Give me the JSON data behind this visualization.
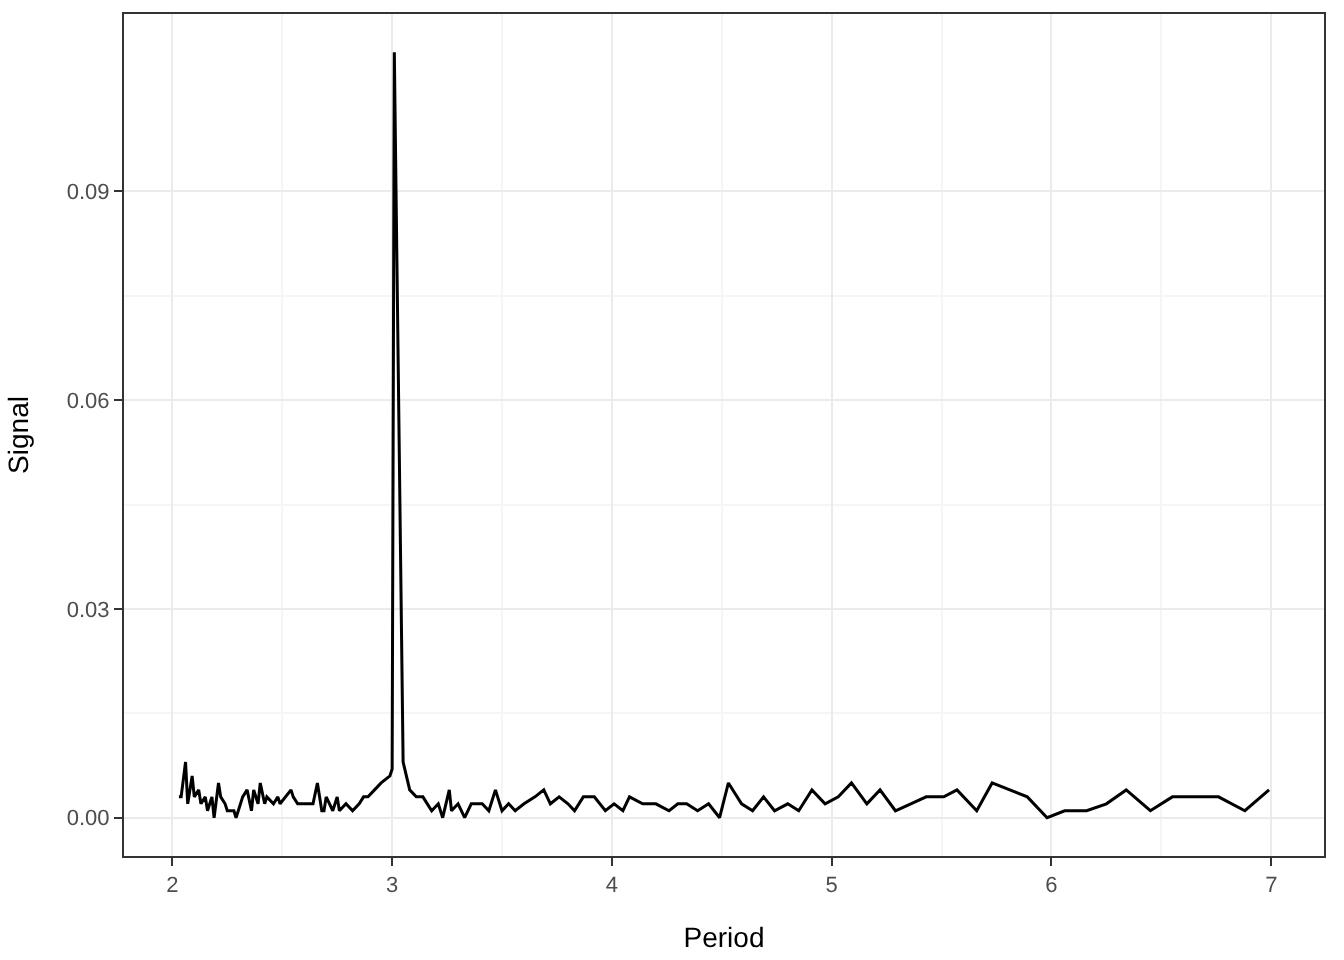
{
  "chart_data": {
    "type": "line",
    "xlabel": "Period",
    "ylabel": "Signal",
    "x": [
      2.03,
      2.04,
      2.06,
      2.07,
      2.09,
      2.1,
      2.12,
      2.13,
      2.15,
      2.16,
      2.18,
      2.19,
      2.21,
      2.22,
      2.24,
      2.25,
      2.28,
      2.29,
      2.32,
      2.34,
      2.36,
      2.37,
      2.39,
      2.4,
      2.42,
      2.43,
      2.46,
      2.48,
      2.49,
      2.54,
      2.55,
      2.57,
      2.58,
      2.62,
      2.64,
      2.66,
      2.68,
      2.69,
      2.7,
      2.73,
      2.75,
      2.76,
      2.79,
      2.82,
      2.85,
      2.87,
      2.89,
      2.92,
      2.95,
      2.99,
      3.0,
      3.01,
      3.05,
      3.08,
      3.11,
      3.14,
      3.18,
      3.21,
      3.23,
      3.26,
      3.27,
      3.3,
      3.33,
      3.36,
      3.41,
      3.44,
      3.47,
      3.5,
      3.53,
      3.56,
      3.6,
      3.65,
      3.69,
      3.72,
      3.76,
      3.8,
      3.83,
      3.87,
      3.92,
      3.97,
      4.01,
      4.05,
      4.08,
      4.14,
      4.2,
      4.26,
      4.3,
      4.34,
      4.39,
      4.44,
      4.49,
      4.53,
      4.59,
      4.64,
      4.69,
      4.74,
      4.8,
      4.85,
      4.91,
      4.97,
      5.03,
      5.09,
      5.16,
      5.22,
      5.29,
      5.36,
      5.43,
      5.51,
      5.57,
      5.66,
      5.73,
      5.89,
      5.98,
      6.06,
      6.16,
      6.25,
      6.34,
      6.45,
      6.55,
      6.66,
      6.76,
      6.88,
      6.99
    ],
    "values": [
      0.003,
      0.003,
      0.008,
      0.002,
      0.006,
      0.003,
      0.004,
      0.002,
      0.003,
      0.001,
      0.003,
      0.0,
      0.005,
      0.003,
      0.002,
      0.001,
      0.001,
      0.0,
      0.003,
      0.004,
      0.001,
      0.004,
      0.002,
      0.005,
      0.002,
      0.003,
      0.002,
      0.003,
      0.002,
      0.004,
      0.003,
      0.002,
      0.002,
      0.002,
      0.002,
      0.005,
      0.001,
      0.001,
      0.003,
      0.001,
      0.003,
      0.001,
      0.002,
      0.001,
      0.002,
      0.003,
      0.003,
      0.004,
      0.005,
      0.006,
      0.007,
      0.11,
      0.008,
      0.004,
      0.003,
      0.003,
      0.001,
      0.002,
      0.0,
      0.004,
      0.001,
      0.002,
      0.0,
      0.002,
      0.002,
      0.001,
      0.004,
      0.001,
      0.002,
      0.001,
      0.002,
      0.003,
      0.004,
      0.002,
      0.003,
      0.002,
      0.001,
      0.003,
      0.003,
      0.001,
      0.002,
      0.001,
      0.003,
      0.002,
      0.002,
      0.001,
      0.002,
      0.002,
      0.001,
      0.002,
      0.0,
      0.005,
      0.002,
      0.001,
      0.003,
      0.001,
      0.002,
      0.001,
      0.004,
      0.002,
      0.003,
      0.005,
      0.002,
      0.004,
      0.001,
      0.002,
      0.003,
      0.003,
      0.004,
      0.001,
      0.005,
      0.003,
      0.0,
      0.001,
      0.001,
      0.002,
      0.004,
      0.001,
      0.003,
      0.003,
      0.003,
      0.001,
      0.004
    ],
    "color": "#000000",
    "line_style": "solid",
    "marker": "none",
    "xlim": [
      1.78,
      7.24
    ],
    "xticks": [
      2,
      3,
      4,
      5,
      6,
      7
    ],
    "ylim": [
      -0.0055,
      0.1155
    ],
    "yticks": [
      {
        "value": 0,
        "label": "0.00"
      },
      {
        "value": 0.03,
        "label": "0.03"
      },
      {
        "value": 0.06,
        "label": "0.06"
      },
      {
        "value": 0.09,
        "label": "0.09"
      }
    ],
    "grid": true
  }
}
